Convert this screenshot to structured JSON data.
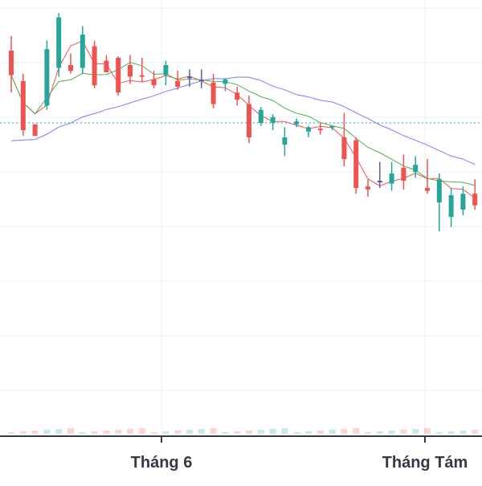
{
  "chart_data": {
    "type": "candlestick",
    "x_axis": {
      "tick_labels": [
        "Tháng 6",
        "Tháng Tám"
      ]
    },
    "grid": true,
    "reference_line": {
      "style": "dotted",
      "color": "#26a69a"
    },
    "colors": {
      "up": "#26a69a",
      "down": "#ef5350",
      "doji": "#5b5ea6",
      "ma_long": "#7b7cff",
      "ma_mid": "#4caf50",
      "ma_short": "#ef5350",
      "grid": "#e9ecef",
      "axis": "#333a44"
    },
    "price_range_note": "price axis values not printed in image",
    "candles": [
      {
        "o": 265,
        "h": 275,
        "l": 236,
        "c": 248
      },
      {
        "o": 244,
        "h": 249,
        "l": 206,
        "c": 210
      },
      {
        "o": 214,
        "h": 214,
        "l": 206,
        "c": 206
      },
      {
        "o": 227,
        "h": 272,
        "l": 224,
        "c": 266
      },
      {
        "o": 253,
        "h": 291,
        "l": 247,
        "c": 288
      },
      {
        "o": 255,
        "h": 263,
        "l": 249,
        "c": 251
      },
      {
        "o": 253,
        "h": 282,
        "l": 249,
        "c": 276
      },
      {
        "o": 268,
        "h": 272,
        "l": 239,
        "c": 241
      },
      {
        "o": 258,
        "h": 262,
        "l": 250,
        "c": 250
      },
      {
        "o": 260,
        "h": 261,
        "l": 234,
        "c": 236
      },
      {
        "o": 255,
        "h": 262,
        "l": 242,
        "c": 247
      },
      {
        "o": 248,
        "h": 260,
        "l": 243,
        "c": 247
      },
      {
        "o": 245,
        "h": 251,
        "l": 239,
        "c": 241
      },
      {
        "o": 248,
        "h": 258,
        "l": 241,
        "c": 255
      },
      {
        "o": 244,
        "h": 251,
        "l": 238,
        "c": 240
      },
      {
        "o": 247,
        "h": 252,
        "l": 240,
        "c": 247
      },
      {
        "o": 245,
        "h": 252,
        "l": 239,
        "c": 245
      },
      {
        "o": 243,
        "h": 249,
        "l": 225,
        "c": 228
      },
      {
        "o": 242,
        "h": 246,
        "l": 237,
        "c": 245
      },
      {
        "o": 236,
        "h": 240,
        "l": 227,
        "c": 231
      },
      {
        "o": 228,
        "h": 234,
        "l": 201,
        "c": 205
      },
      {
        "o": 215,
        "h": 226,
        "l": 213,
        "c": 224
      },
      {
        "o": 215,
        "h": 221,
        "l": 210,
        "c": 219
      },
      {
        "o": 200,
        "h": 212,
        "l": 192,
        "c": 205
      },
      {
        "o": 214,
        "h": 218,
        "l": 212,
        "c": 216
      },
      {
        "o": 209,
        "h": 213,
        "l": 205,
        "c": 212
      },
      {
        "o": 211,
        "h": 215,
        "l": 207,
        "c": 210
      },
      {
        "o": 212,
        "h": 213,
        "l": 210,
        "c": 213
      },
      {
        "o": 205,
        "h": 222,
        "l": 185,
        "c": 190
      },
      {
        "o": 203,
        "h": 205,
        "l": 166,
        "c": 170
      },
      {
        "o": 171,
        "h": 176,
        "l": 164,
        "c": 169
      },
      {
        "o": 175,
        "h": 188,
        "l": 170,
        "c": 175
      },
      {
        "o": 173,
        "h": 188,
        "l": 168,
        "c": 180
      },
      {
        "o": 184,
        "h": 193,
        "l": 169,
        "c": 175
      },
      {
        "o": 181,
        "h": 192,
        "l": 177,
        "c": 186
      },
      {
        "o": 170,
        "h": 190,
        "l": 166,
        "c": 168
      },
      {
        "o": 160,
        "h": 180,
        "l": 140,
        "c": 176
      },
      {
        "o": 150,
        "h": 170,
        "l": 143,
        "c": 165
      },
      {
        "o": 155,
        "h": 171,
        "l": 151,
        "c": 166
      },
      {
        "o": 166,
        "h": 176,
        "l": 155,
        "c": 158
      }
    ]
  }
}
